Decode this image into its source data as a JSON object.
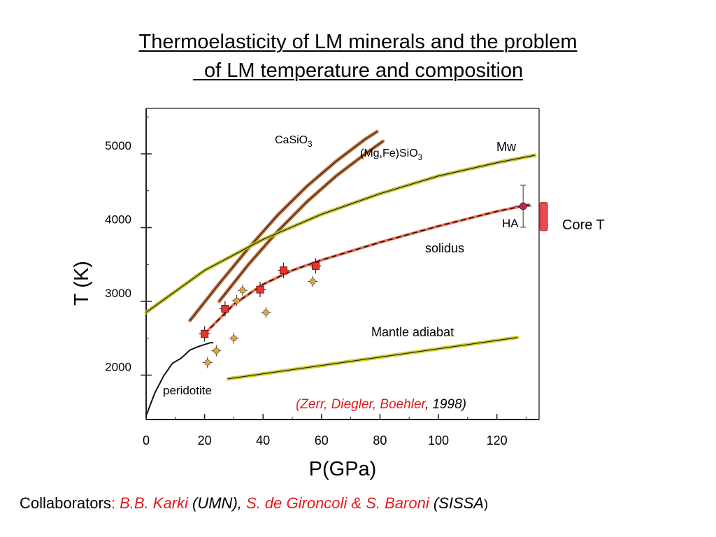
{
  "title": {
    "line1": "Thermoelasticity of LM minerals and the problem",
    "line2": "  of LM temperature and composition"
  },
  "collaborators": {
    "prefix": "Collaborators",
    "colon": ":",
    "karki": "B.B. Karki",
    "umn": " (UMN)",
    "comma": ",",
    "degironcoli": "S. de Gironcoli & S. Baroni",
    "sissa": " (SISSA",
    "close": ")"
  },
  "chart_data": {
    "type": "line",
    "xlabel": "P(GPa)",
    "ylabel": "T (K)",
    "xlim": [
      0,
      135
    ],
    "ylim": [
      1380,
      5650
    ],
    "xticks": [
      "0",
      "20",
      "40",
      "60",
      "80",
      "100",
      "120"
    ],
    "yticks": [
      "2000",
      "3000",
      "4000",
      "5000"
    ],
    "grid": false,
    "series": [
      {
        "name": "CaSiO3",
        "color": "#b5622a",
        "x": [
          15,
          25,
          35,
          45,
          55,
          65,
          75,
          79
        ],
        "y": [
          2740,
          3240,
          3720,
          4170,
          4560,
          4900,
          5200,
          5300
        ]
      },
      {
        "name": "(Mg,Fe)SiO3",
        "color": "#b5622a",
        "x": [
          25,
          35,
          45,
          55,
          65,
          75,
          81
        ],
        "y": [
          3000,
          3500,
          3950,
          4350,
          4700,
          5000,
          5170
        ]
      },
      {
        "name": "Mw",
        "color": "#b7bd1c",
        "x": [
          0,
          20,
          40,
          60,
          80,
          100,
          120,
          133
        ],
        "y": [
          2850,
          3420,
          3840,
          4180,
          4460,
          4700,
          4880,
          4980
        ]
      },
      {
        "name": "solidus",
        "color": "#e4572e",
        "x": [
          20,
          30,
          40,
          50,
          60,
          80,
          100,
          120,
          131
        ],
        "y": [
          2560,
          2960,
          3230,
          3420,
          3560,
          3800,
          4020,
          4220,
          4310
        ]
      },
      {
        "name": "Mantle adiabat",
        "color": "#c7c619",
        "x": [
          28,
          127
        ],
        "y": [
          1950,
          2510
        ]
      },
      {
        "name": "peridotite",
        "color": "#111111",
        "x": [
          0,
          3,
          6,
          9,
          12,
          15,
          18,
          22,
          23
        ],
        "y": [
          1450,
          1760,
          1990,
          2160,
          2230,
          2340,
          2390,
          2440,
          2440
        ]
      }
    ],
    "points_red": {
      "x": [
        20,
        27,
        39,
        47,
        58
      ],
      "y": [
        2560,
        2900,
        3160,
        3420,
        3480
      ]
    },
    "points_orange": {
      "x": [
        21,
        24,
        30,
        31,
        33,
        41,
        57
      ],
      "y": [
        2170,
        2330,
        2500,
        3010,
        3150,
        2850,
        3270
      ]
    },
    "point_ha": {
      "x": 129,
      "y": 4290
    },
    "core_t": {
      "ymin": 3960,
      "ymax": 4340
    },
    "annotations": {
      "casio3_base": "CaSiO",
      "casio3_sub": "3",
      "mgfe_base": "(Mg,Fe)SiO",
      "mgfe_sub": "3",
      "mw": "Mw",
      "ha": "HA",
      "solidus": "solidus",
      "core_t": "Core T",
      "mantle_adiabat": "Mantle adiabat",
      "peridotite": "peridotite",
      "ref_open": "(",
      "ref_authors": "Zerr, Diegler, Boehler",
      "ref_year": ", 1998)"
    }
  },
  "colors": {
    "orange_curve": "#b5622a",
    "olive_curve": "#b7bd1c",
    "solidus": "#e4572e",
    "red_point": "#e8352e",
    "orange_point": "#d8a74a",
    "ha_point": "#c0235a",
    "core_t": "#e84a50",
    "reference_red": "#e31a1c"
  }
}
